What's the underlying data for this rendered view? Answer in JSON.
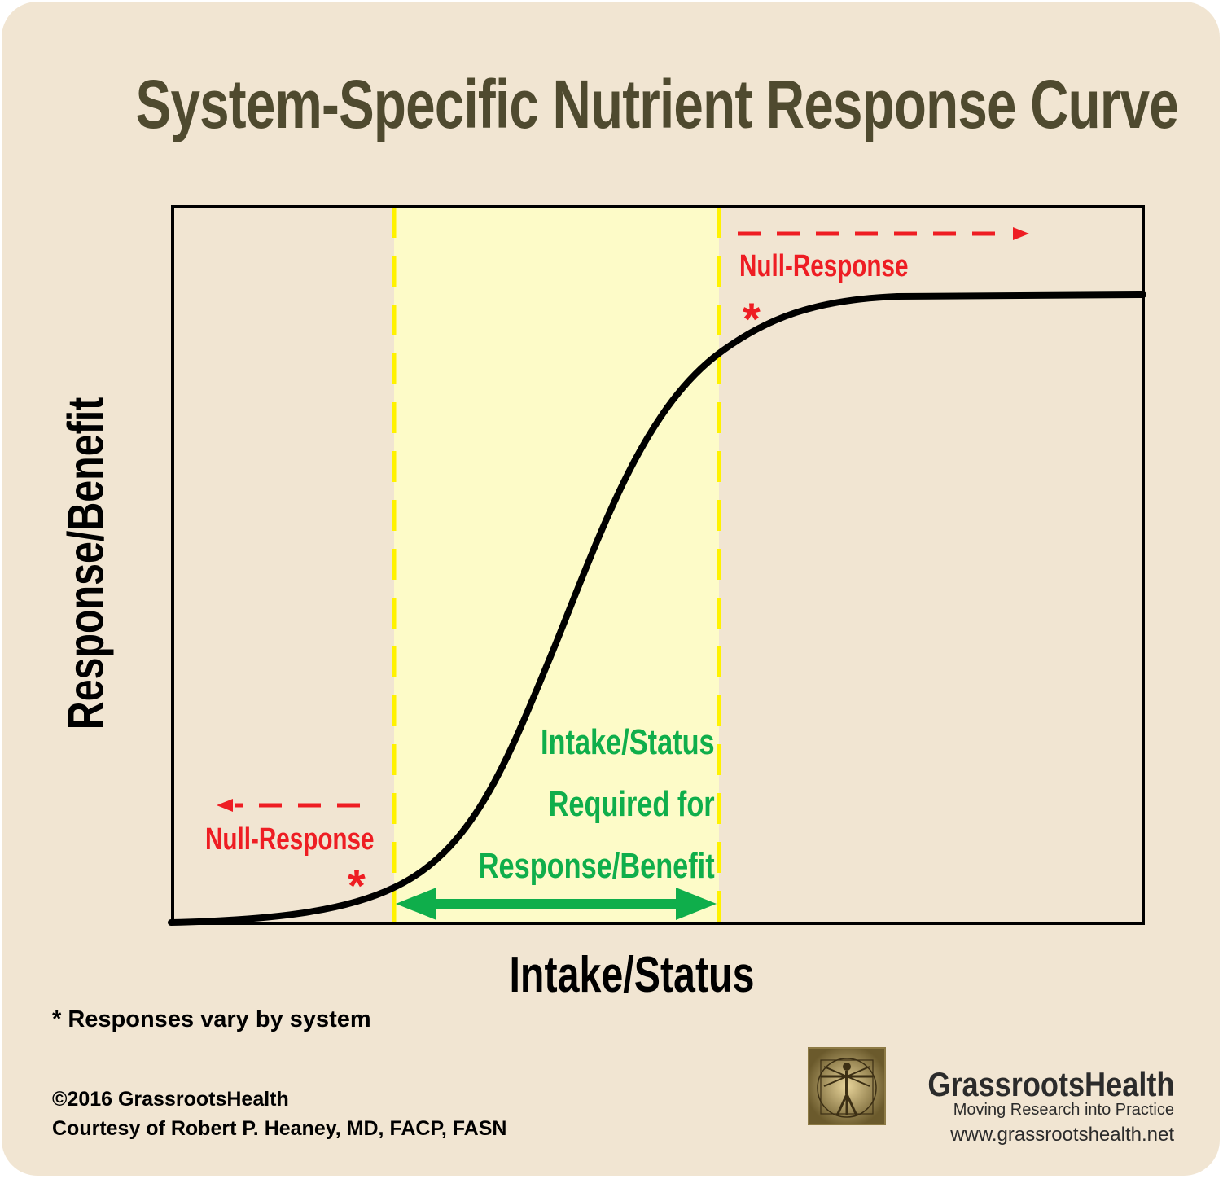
{
  "title": "System-Specific Nutrient Response Curve",
  "axes": {
    "y_label": "Response/Benefit",
    "x_label": "Intake/Status"
  },
  "annotations": {
    "null_response_left": "Null-Response",
    "null_response_right": "Null-Response",
    "asterisk": "*",
    "required_range": [
      "Intake/Status",
      "Required for",
      "Response/Benefit"
    ]
  },
  "footnote": "* Responses vary by system",
  "credits": {
    "copyright": "©2016 GrassrootsHealth",
    "courtesy": "Courtesy of Robert P. Heaney, MD, FACP, FASN"
  },
  "brand": {
    "name": "GrassrootsHealth",
    "tagline": "Moving Research into Practice",
    "website": "www.grassrootshealth.net"
  },
  "colors": {
    "background": "#f1e5d2",
    "title": "#4f4a2f",
    "null_response": "#ee1d23",
    "required_range": "#0fae4b",
    "highlight_band": "#fdfbc8",
    "band_edges": "#fff200",
    "curve": "#000000"
  }
}
